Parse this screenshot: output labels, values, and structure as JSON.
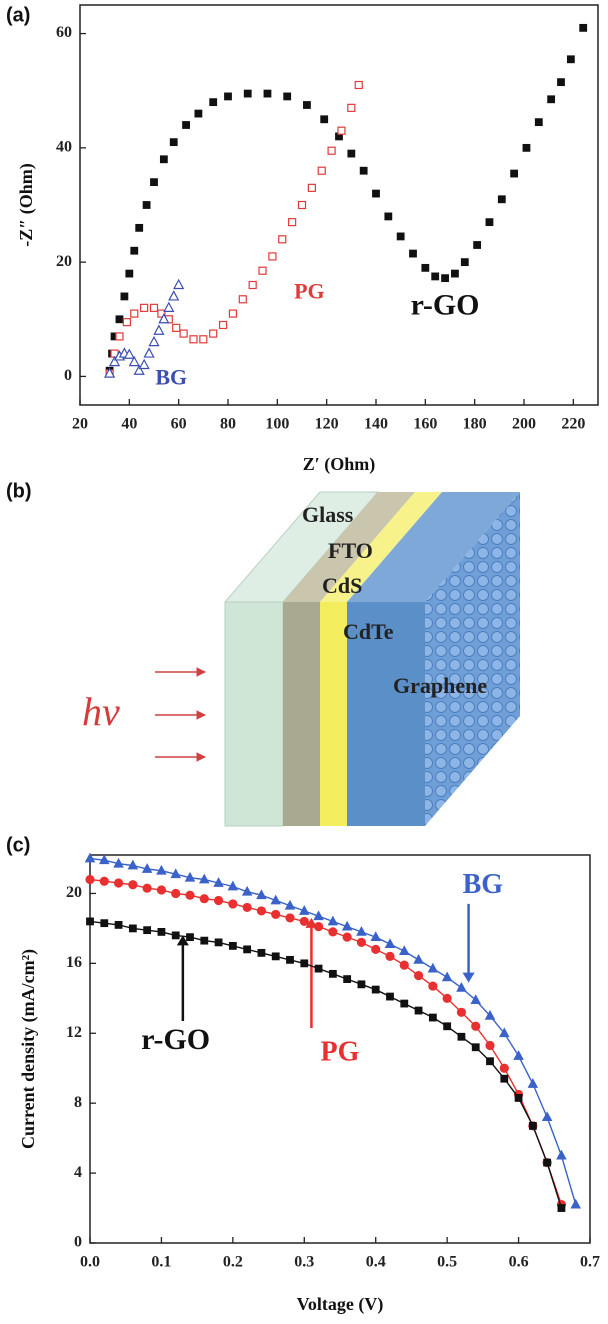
{
  "chart_data": [
    {
      "type": "scatter",
      "label": "(a)",
      "x_label": "Z′ (Ohm)",
      "y_label": "-Z″ (Ohm)",
      "xlim": [
        20,
        230
      ],
      "ylim": [
        -5,
        65
      ],
      "xticks": [
        20,
        40,
        60,
        80,
        100,
        120,
        140,
        160,
        180,
        200,
        220
      ],
      "yticks": [
        0,
        20,
        40,
        60
      ],
      "series": [
        {
          "name": "r-GO",
          "color": "#111111",
          "marker": "square",
          "x": [
            32,
            33,
            34,
            36,
            38,
            40,
            42,
            44,
            47,
            50,
            54,
            58,
            63,
            68,
            74,
            80,
            88,
            96,
            104,
            112,
            119,
            125,
            130,
            135,
            140,
            145,
            150,
            155,
            160,
            164,
            168,
            172,
            176,
            181,
            186,
            191,
            196,
            201,
            206,
            211,
            215,
            219,
            224
          ],
          "values": [
            1,
            4,
            7,
            10,
            14,
            18,
            22,
            26,
            30,
            34,
            38,
            41,
            44,
            46,
            48,
            49,
            49.5,
            49.5,
            49,
            47.5,
            45,
            42,
            39,
            36,
            32,
            28,
            24.5,
            21.5,
            19,
            17.5,
            17.2,
            18,
            20,
            23,
            27,
            31,
            35.5,
            40,
            44.5,
            48.5,
            51.5,
            55.5,
            61
          ]
        },
        {
          "name": "PG",
          "color": "#e03a3a",
          "marker": "square-open",
          "x": [
            32,
            34,
            36,
            39,
            42,
            46,
            50,
            53,
            56,
            59,
            62,
            66,
            70,
            74,
            78,
            82,
            86,
            90,
            94,
            98,
            102,
            106,
            110,
            114,
            118,
            122,
            126,
            130,
            133
          ],
          "values": [
            0.5,
            4,
            7,
            9.5,
            11,
            12,
            12,
            11,
            10,
            8.5,
            7.5,
            6.5,
            6.5,
            7.5,
            9,
            11,
            13.5,
            16,
            18.5,
            21,
            24,
            27,
            30,
            33,
            36,
            39.5,
            43,
            47,
            51
          ]
        },
        {
          "name": "BG",
          "color": "#3a4fb0",
          "marker": "triangle-open",
          "x": [
            32,
            34,
            36,
            38,
            40,
            42,
            44,
            46,
            48,
            50,
            52,
            54,
            56,
            58,
            60
          ],
          "values": [
            0.5,
            2.5,
            3.5,
            4,
            3.8,
            2.5,
            1,
            2,
            4,
            6,
            8,
            10,
            12,
            14,
            16
          ]
        }
      ]
    },
    {
      "type": "line",
      "label": "(c)",
      "x_label": "Voltage (V)",
      "y_label": "Current density (mA/cm²)",
      "xlim": [
        0,
        0.7
      ],
      "ylim": [
        0,
        22.2
      ],
      "xticks": [
        {
          "value": 0,
          "label": "0.0"
        },
        0.1,
        0.2,
        0.3,
        0.4,
        0.5,
        0.6,
        0.7
      ],
      "yticks": [
        0,
        4,
        8,
        12,
        16,
        20
      ],
      "x": [
        0,
        0.02,
        0.04,
        0.06,
        0.08,
        0.1,
        0.12,
        0.14,
        0.16,
        0.18,
        0.2,
        0.22,
        0.24,
        0.26,
        0.28,
        0.3,
        0.32,
        0.34,
        0.36,
        0.38,
        0.4,
        0.42,
        0.44,
        0.46,
        0.48,
        0.5,
        0.52,
        0.54,
        0.56,
        0.58,
        0.6,
        0.62,
        0.64,
        0.66,
        0.68
      ],
      "series": [
        {
          "name": "BG",
          "color": "#3a62c8",
          "marker": "triangle",
          "values": [
            22.0,
            21.9,
            21.7,
            21.6,
            21.4,
            21.3,
            21.1,
            20.9,
            20.8,
            20.6,
            20.4,
            20.1,
            19.9,
            19.6,
            19.3,
            19.0,
            18.7,
            18.4,
            18.1,
            17.8,
            17.5,
            17.1,
            16.7,
            16.2,
            15.7,
            15.2,
            14.6,
            13.9,
            13.0,
            12.0,
            10.7,
            9.1,
            7.2,
            5.0,
            2.2
          ]
        },
        {
          "name": "PG",
          "color": "#e83030",
          "marker": "circle",
          "values": [
            20.8,
            20.7,
            20.6,
            20.5,
            20.3,
            20.2,
            20.0,
            19.9,
            19.7,
            19.6,
            19.4,
            19.2,
            19.0,
            18.8,
            18.6,
            18.4,
            18.1,
            17.8,
            17.5,
            17.2,
            16.8,
            16.4,
            15.9,
            15.3,
            14.7,
            14.0,
            13.2,
            12.4,
            11.3,
            10.0,
            8.5,
            6.7,
            4.6,
            2.2,
            null
          ]
        },
        {
          "name": "r-GO",
          "color": "#111111",
          "marker": "square",
          "values": [
            18.4,
            18.3,
            18.2,
            18.0,
            17.9,
            17.8,
            17.6,
            17.5,
            17.3,
            17.2,
            17.0,
            16.8,
            16.6,
            16.4,
            16.2,
            16.0,
            15.7,
            15.4,
            15.1,
            14.8,
            14.5,
            14.1,
            13.7,
            13.3,
            12.9,
            12.4,
            11.8,
            11.2,
            10.4,
            9.4,
            8.3,
            6.7,
            4.6,
            2.0,
            null
          ]
        }
      ]
    }
  ],
  "diagram": {
    "label": "(b)",
    "layers": [
      "Glass",
      "FTO",
      "CdS",
      "CdTe",
      "Graphene"
    ],
    "light": "hv"
  }
}
